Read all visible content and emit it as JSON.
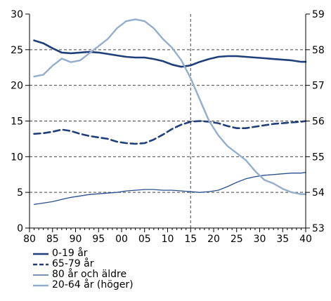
{
  "chart_data": {
    "type": "line",
    "title": "",
    "xlabel": "",
    "ylabel": "",
    "x_tick_labels": [
      "80",
      "85",
      "90",
      "95",
      "00",
      "05",
      "10",
      "15",
      "20",
      "25",
      "30",
      "35",
      "40"
    ],
    "left_axis": {
      "ylim": [
        0,
        30
      ],
      "tick_labels": [
        "0",
        "5",
        "10",
        "15",
        "20",
        "25",
        "30"
      ]
    },
    "right_axis": {
      "ylim": [
        53,
        59
      ],
      "tick_labels": [
        "53",
        "54",
        "55",
        "56",
        "57",
        "58",
        "59"
      ]
    },
    "grid": {
      "horizontal": "dashed",
      "vertical": "none"
    },
    "reference_line": {
      "x": 2015,
      "style": "dashed"
    },
    "legend_position": "bottom-left",
    "x": [
      1981,
      1983,
      1985,
      1987,
      1989,
      1991,
      1993,
      1995,
      1997,
      1999,
      2001,
      2003,
      2005,
      2007,
      2009,
      2011,
      2013,
      2015,
      2017,
      2019,
      2021,
      2023,
      2025,
      2027,
      2029,
      2031,
      2033,
      2035,
      2037,
      2039,
      2040
    ],
    "series": [
      {
        "name": "0-19 år",
        "axis": "left",
        "color": "#1f3f7a",
        "style": "solid-thick",
        "values": [
          26.3,
          25.9,
          25.2,
          24.6,
          24.5,
          24.6,
          24.7,
          24.6,
          24.4,
          24.2,
          24.0,
          23.9,
          23.9,
          23.7,
          23.4,
          22.9,
          22.6,
          22.8,
          23.3,
          23.7,
          24.0,
          24.1,
          24.1,
          24.0,
          23.9,
          23.8,
          23.7,
          23.6,
          23.5,
          23.3,
          23.3
        ]
      },
      {
        "name": "65-79 år",
        "axis": "left",
        "color": "#1f3f7a",
        "style": "dashed-thick",
        "values": [
          13.2,
          13.3,
          13.5,
          13.8,
          13.6,
          13.2,
          12.9,
          12.7,
          12.5,
          12.1,
          11.9,
          11.8,
          11.9,
          12.4,
          13.1,
          13.9,
          14.5,
          14.9,
          15.0,
          14.9,
          14.7,
          14.3,
          14.0,
          14.0,
          14.2,
          14.4,
          14.6,
          14.7,
          14.8,
          14.9,
          15.0
        ]
      },
      {
        "name": "80 år och äldre",
        "axis": "left",
        "color": "#2a4f8f",
        "style": "solid-thin",
        "values": [
          3.3,
          3.5,
          3.7,
          4.0,
          4.3,
          4.5,
          4.7,
          4.8,
          4.9,
          5.0,
          5.2,
          5.3,
          5.4,
          5.4,
          5.3,
          5.3,
          5.2,
          5.1,
          5.0,
          5.1,
          5.3,
          5.8,
          6.4,
          6.9,
          7.2,
          7.4,
          7.5,
          7.6,
          7.7,
          7.7,
          7.8
        ]
      },
      {
        "name": "20-64 år (höger)",
        "axis": "right",
        "color": "#93aecd",
        "style": "solid-medium",
        "values": [
          57.25,
          57.3,
          57.55,
          57.75,
          57.65,
          57.7,
          57.9,
          58.1,
          58.3,
          58.6,
          58.8,
          58.85,
          58.8,
          58.6,
          58.3,
          58.05,
          57.7,
          57.2,
          56.6,
          56.0,
          55.6,
          55.3,
          55.1,
          54.9,
          54.6,
          54.35,
          54.25,
          54.1,
          54.0,
          53.95,
          53.95
        ]
      }
    ]
  }
}
